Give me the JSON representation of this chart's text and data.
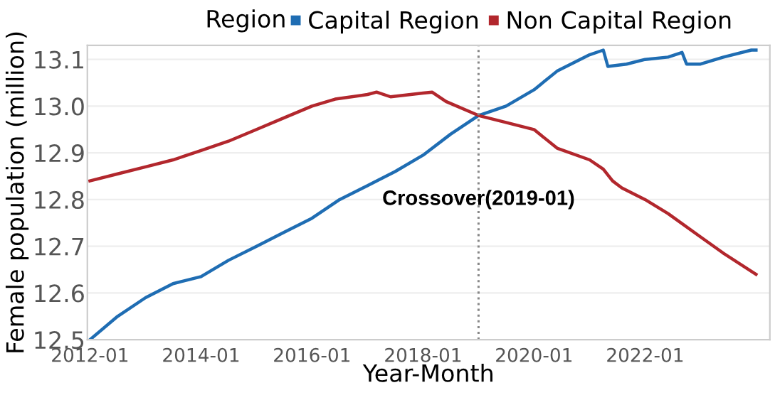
{
  "chart_data": {
    "type": "line",
    "xlabel": "Year-Month",
    "ylabel": "Female population (million)",
    "legend_title": "Region",
    "legend": "top",
    "series": [
      {
        "name": "Capital Region",
        "color": "#1f6db3",
        "x": [
          "2012-01",
          "2012-07",
          "2013-01",
          "2013-07",
          "2014-01",
          "2014-07",
          "2015-01",
          "2015-07",
          "2016-01",
          "2016-07",
          "2017-01",
          "2017-07",
          "2018-01",
          "2018-07",
          "2019-01",
          "2019-07",
          "2020-01",
          "2020-06",
          "2021-01",
          "2021-04",
          "2021-05",
          "2021-09",
          "2022-01",
          "2022-06",
          "2022-09",
          "2022-10",
          "2023-01",
          "2023-06",
          "2023-12",
          "2024-01"
        ],
        "values": [
          12.5,
          12.55,
          12.59,
          12.62,
          12.635,
          12.67,
          12.7,
          12.73,
          12.76,
          12.8,
          12.83,
          12.86,
          12.895,
          12.94,
          12.98,
          13.0,
          13.035,
          13.075,
          13.11,
          13.12,
          13.085,
          13.09,
          13.1,
          13.105,
          13.115,
          13.09,
          13.09,
          13.105,
          13.12,
          13.12
        ]
      },
      {
        "name": "Non Capital Region",
        "color": "#b2272d",
        "x": [
          "2012-01",
          "2012-07",
          "2013-01",
          "2013-07",
          "2014-01",
          "2014-07",
          "2015-01",
          "2015-07",
          "2016-01",
          "2016-06",
          "2017-01",
          "2017-03",
          "2017-06",
          "2018-01",
          "2018-03",
          "2018-06",
          "2019-01",
          "2019-07",
          "2020-01",
          "2020-06",
          "2021-01",
          "2021-04",
          "2021-06",
          "2021-08",
          "2022-01",
          "2022-06",
          "2023-01",
          "2023-06",
          "2024-01"
        ],
        "values": [
          12.84,
          12.855,
          12.87,
          12.885,
          12.905,
          12.925,
          12.95,
          12.975,
          13.0,
          13.015,
          13.025,
          13.03,
          13.02,
          13.028,
          13.03,
          13.01,
          12.98,
          12.965,
          12.95,
          12.91,
          12.885,
          12.865,
          12.84,
          12.825,
          12.8,
          12.77,
          12.72,
          12.685,
          12.64
        ]
      }
    ],
    "xlim": [
      "2011-12-15",
      "2024-04"
    ],
    "xticks": [
      {
        "value": "2012-01",
        "label": "2012-01"
      },
      {
        "value": "2014-01",
        "label": "2014-01"
      },
      {
        "value": "2016-01",
        "label": "2016-01"
      },
      {
        "value": "2018-01",
        "label": "2018-01"
      },
      {
        "value": "2020-01",
        "label": "2020-01"
      },
      {
        "value": "2022-01",
        "label": "2022-01"
      }
    ],
    "ylim": [
      12.5,
      13.13
    ],
    "yticks": [
      12.5,
      12.6,
      12.7,
      12.8,
      12.9,
      {
        "value": 13.0,
        "label": "13.0"
      },
      13.1
    ],
    "grid": "y",
    "ref_lines": [
      {
        "axis": "x",
        "value": "2019-01",
        "color": "#888888",
        "line_style": "dotted"
      }
    ],
    "annotations": [
      {
        "text": "Crossover(2019-01)",
        "x": "2019-01",
        "y": 12.8
      }
    ]
  }
}
